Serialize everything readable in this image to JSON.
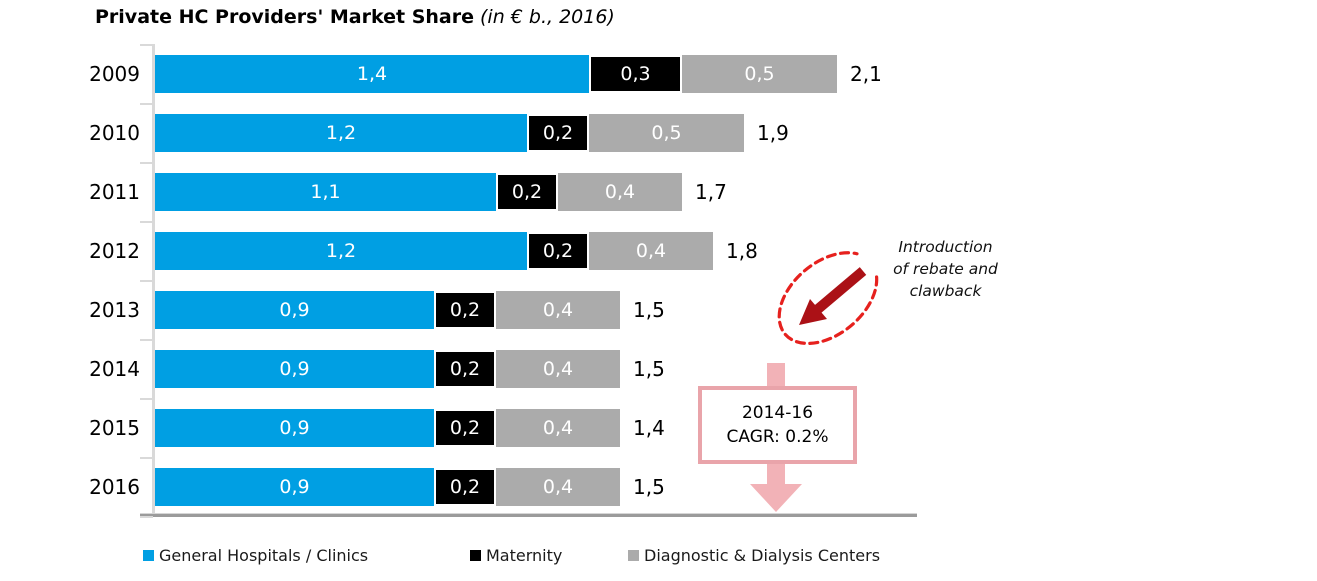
{
  "title": {
    "main": "Private HC Providers' Market Share",
    "qualifier": "(in € b., 2016)"
  },
  "chart_data": {
    "type": "bar",
    "orientation": "horizontal",
    "stacked": true,
    "title": "Private HC Providers' Market Share",
    "subtitle": "(in € b., 2016)",
    "unit": "€ b.",
    "categories": [
      "2009",
      "2010",
      "2011",
      "2012",
      "2013",
      "2014",
      "2015",
      "2016"
    ],
    "series": [
      {
        "name": "General Hospitals / Clinics",
        "color": "#009FE3",
        "values": [
          1.4,
          1.2,
          1.1,
          1.2,
          0.9,
          0.9,
          0.9,
          0.9
        ],
        "labels": [
          "1,4",
          "1,2",
          "1,1",
          "1,2",
          "0,9",
          "0,9",
          "0,9",
          "0,9"
        ]
      },
      {
        "name": "Maternity",
        "color": "#000000",
        "values": [
          0.3,
          0.2,
          0.2,
          0.2,
          0.2,
          0.2,
          0.2,
          0.2
        ],
        "labels": [
          "0,3",
          "0,2",
          "0,2",
          "0,2",
          "0,2",
          "0,2",
          "0,2",
          "0,2"
        ]
      },
      {
        "name": "Diagnostic & Dialysis Centers",
        "color": "#ABABAB",
        "values": [
          0.5,
          0.5,
          0.4,
          0.4,
          0.4,
          0.4,
          0.4,
          0.4
        ],
        "labels": [
          "0,5",
          "0,5",
          "0,4",
          "0,4",
          "0,4",
          "0,4",
          "0,4",
          "0,4"
        ]
      }
    ],
    "totals": [
      "2,1",
      "1,9",
      "1,7",
      "1,8",
      "1,5",
      "1,5",
      "1,4",
      "1,5"
    ],
    "xlim": [
      0,
      2.35
    ],
    "grid": false,
    "legend_position": "bottom",
    "axis_color": "#D9D9D9",
    "baseline_color": "#9B9B9B"
  },
  "legend": {
    "items": [
      {
        "label": "General Hospitals / Clinics",
        "color": "#009FE3"
      },
      {
        "label": "Maternity",
        "color": "#000000"
      },
      {
        "label": "Diagnostic & Dialysis Centers",
        "color": "#ABABAB"
      }
    ]
  },
  "annotations": {
    "note": {
      "lines": [
        "Introduction",
        "of rebate and",
        "clawback"
      ]
    },
    "cagr": {
      "period": "2014-16",
      "label": "CAGR: 0.2%"
    },
    "colors": {
      "dashed_ellipse": "#E6211E",
      "dark_red_arrow": "#AB1116",
      "pink_arrow": "#F2B2B7",
      "box_border": "#E9A4AA"
    }
  }
}
